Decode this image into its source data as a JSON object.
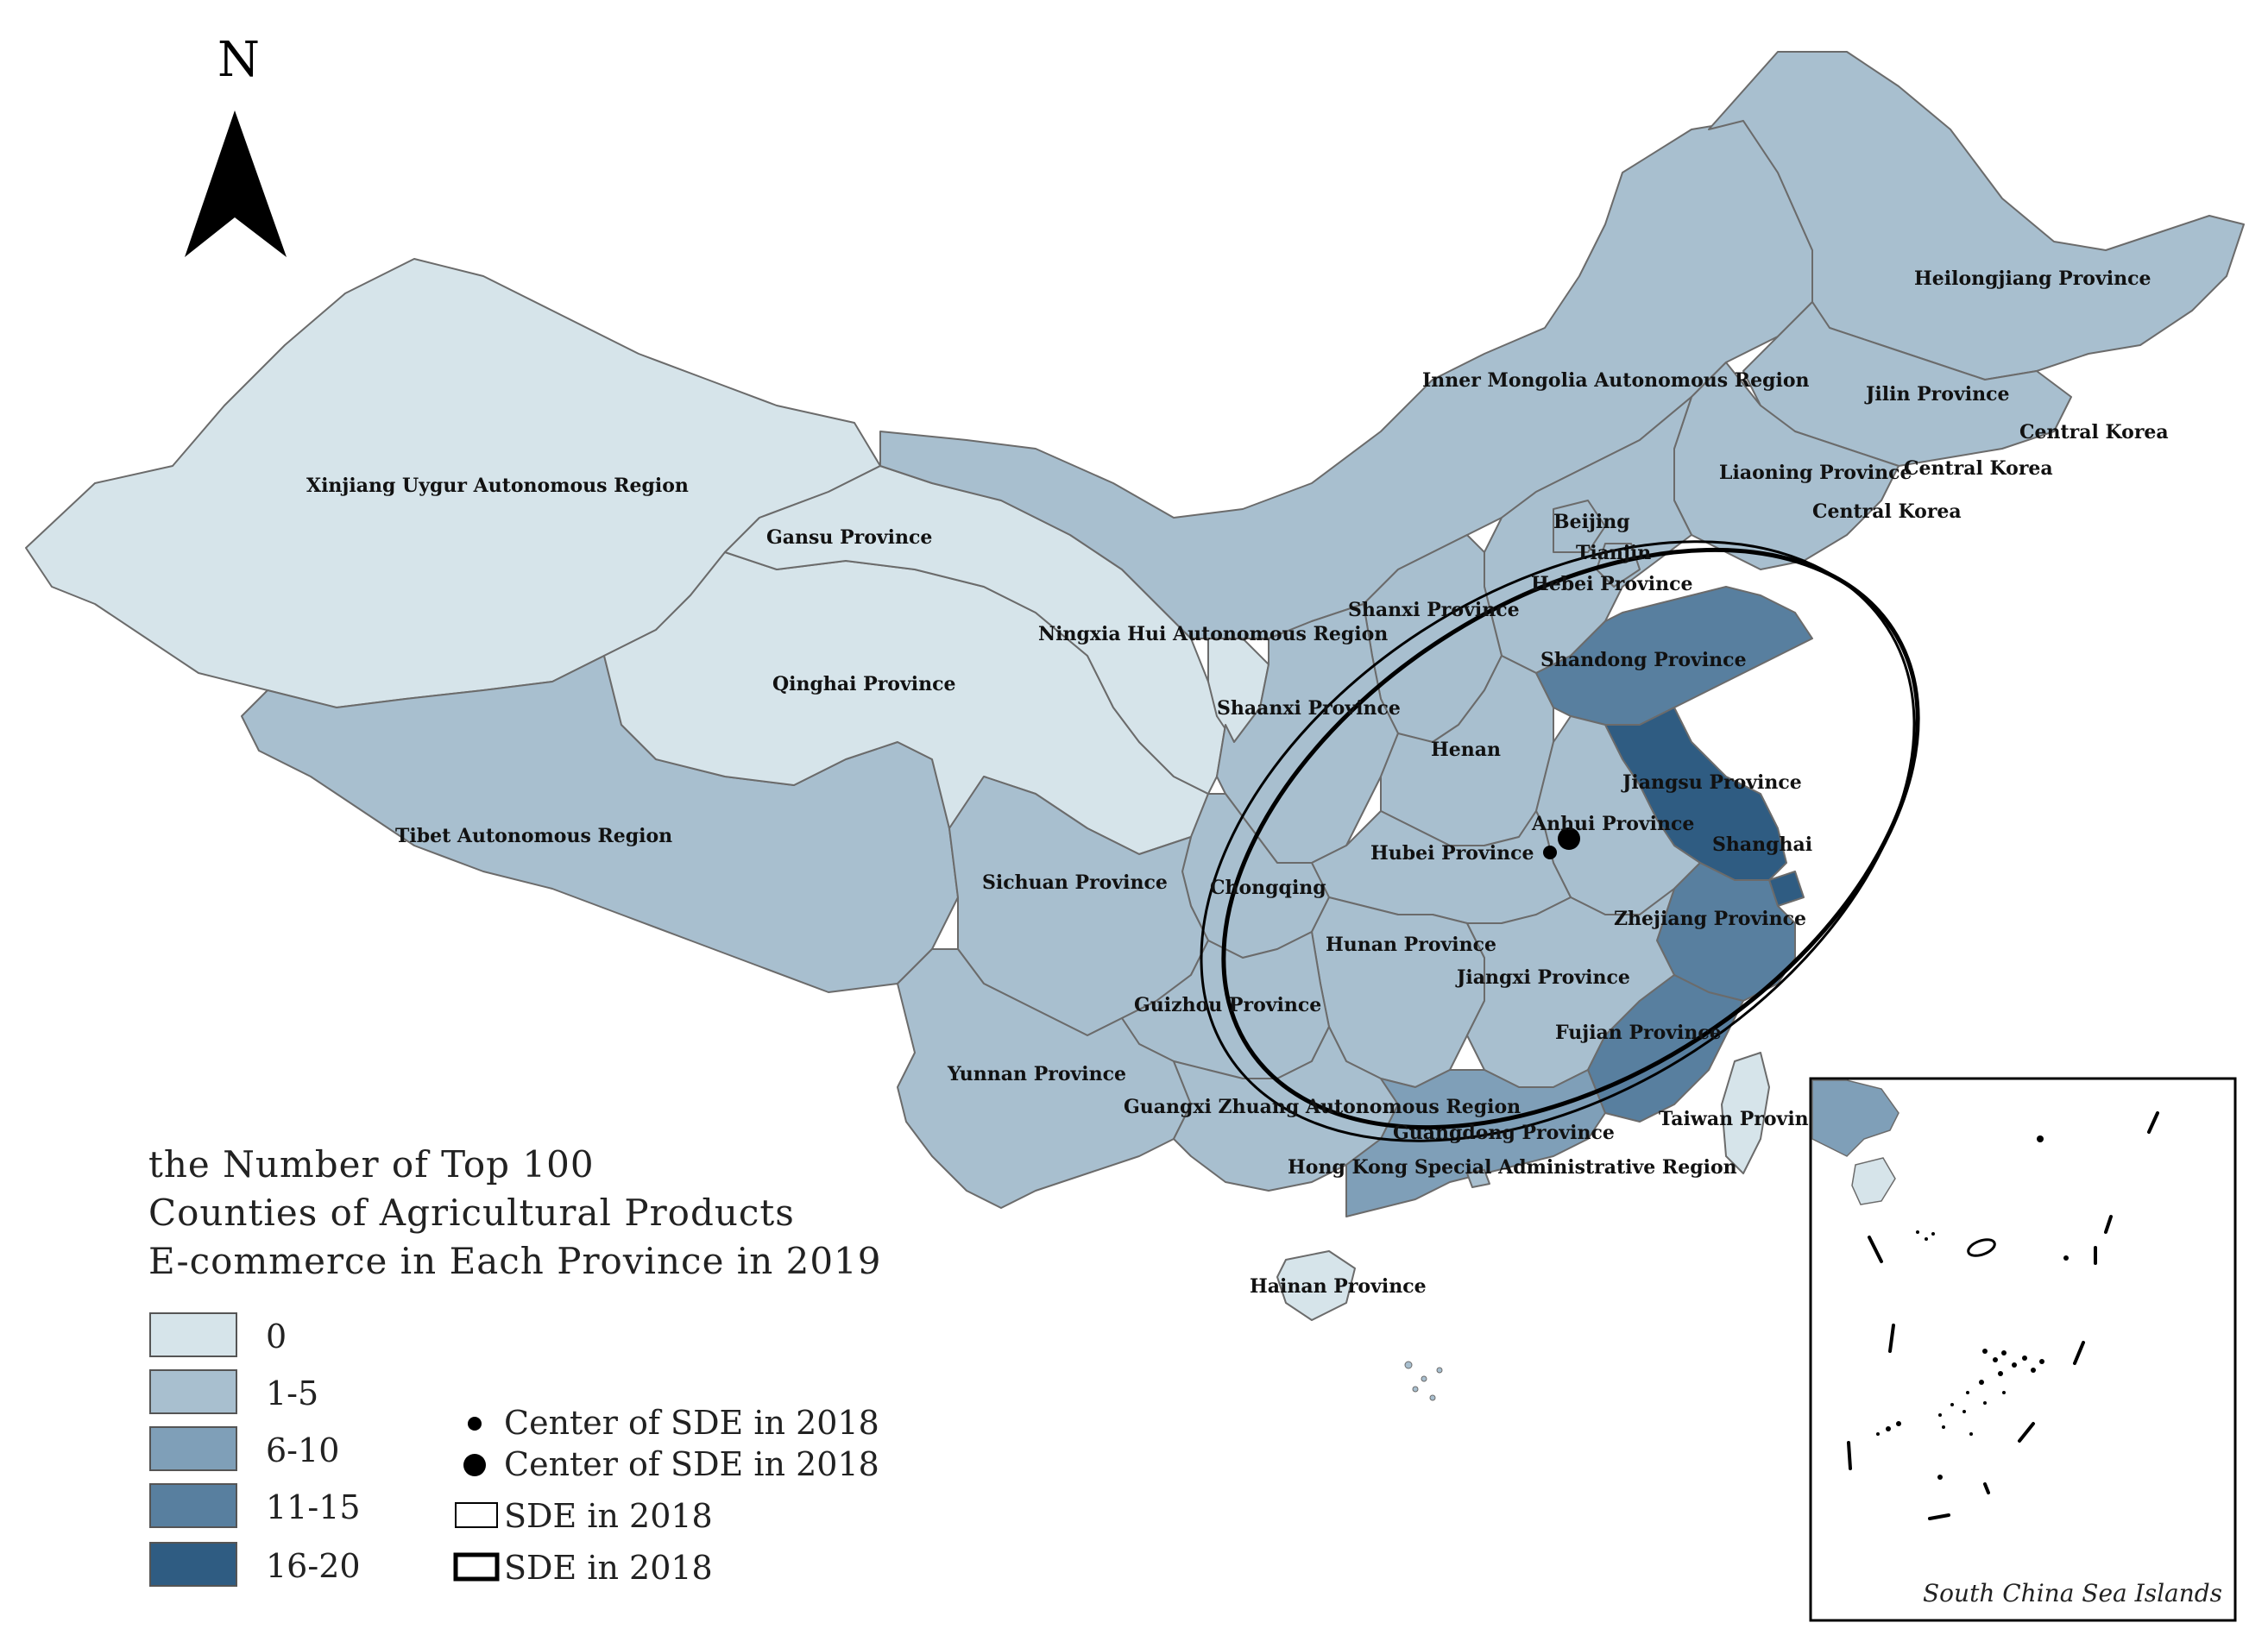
{
  "north_label": "N",
  "colors": {
    "c0": "#d6e4ea",
    "c1": "#a8bfcf",
    "c2": "#7f9fb8",
    "c3": "#587f9f",
    "c4": "#2f5c82",
    "border": "#6b6b6b"
  },
  "provinces": [
    {
      "name": "Xinjiang Uygur Autonomous Region",
      "class": "c0"
    },
    {
      "name": "Gansu Province",
      "class": "c0"
    },
    {
      "name": "Qinghai Province",
      "class": "c0"
    },
    {
      "name": "Ningxia Hui Autonomous Region",
      "class": "c0"
    },
    {
      "name": "Tibet Autonomous Region",
      "class": "c1"
    },
    {
      "name": "Inner Mongolia Autonomous Region",
      "class": "c1"
    },
    {
      "name": "Heilongjiang Province",
      "class": "c1"
    },
    {
      "name": "Jilin Province",
      "class": "c1"
    },
    {
      "name": "Liaoning Province",
      "class": "c1"
    },
    {
      "name": "Beijing",
      "class": "c1"
    },
    {
      "name": "Tianjin",
      "class": "c1"
    },
    {
      "name": "Hebei Province",
      "class": "c1"
    },
    {
      "name": "Shanxi Province",
      "class": "c1"
    },
    {
      "name": "Shaanxi Province",
      "class": "c1"
    },
    {
      "name": "Henan",
      "class": "c1"
    },
    {
      "name": "Shandong Province",
      "class": "c3"
    },
    {
      "name": "Jiangsu Province",
      "class": "c4"
    },
    {
      "name": "Anhui Province",
      "class": "c1"
    },
    {
      "name": "Shanghai",
      "class": "c4"
    },
    {
      "name": "Hubei Province",
      "class": "c1"
    },
    {
      "name": "Sichuan Province",
      "class": "c1"
    },
    {
      "name": "Chongqing",
      "class": "c1"
    },
    {
      "name": "Hunan Province",
      "class": "c1"
    },
    {
      "name": "Jiangxi Province",
      "class": "c1"
    },
    {
      "name": "Zhejiang Province",
      "class": "c3"
    },
    {
      "name": "Fujian Province",
      "class": "c3"
    },
    {
      "name": "Guizhou Province",
      "class": "c1"
    },
    {
      "name": "Yunnan Province",
      "class": "c1"
    },
    {
      "name": "Guangxi Zhuang Autonomous Region",
      "class": "c1"
    },
    {
      "name": "Guangdong Province",
      "class": "c2"
    },
    {
      "name": "Hong Kong Special Administrative Region",
      "class": "c1"
    },
    {
      "name": "Taiwan Province",
      "class": "c0"
    },
    {
      "name": "Hainan Province",
      "class": "c0"
    }
  ],
  "extra_labels": [
    "Central Korea",
    "Central Korea",
    "Central Korea"
  ],
  "legend": {
    "title_lines": [
      "the Number of Top 100",
      "Counties of Agricultural Products",
      "E-commerce in Each Province in 2019"
    ],
    "classes": [
      {
        "label": "0",
        "color": "#d6e4ea"
      },
      {
        "label": "1-5",
        "color": "#a8bfcf"
      },
      {
        "label": "6-10",
        "color": "#7f9fb8"
      },
      {
        "label": "11-15",
        "color": "#587f9f"
      },
      {
        "label": "16-20",
        "color": "#2f5c82"
      }
    ],
    "symbols": [
      {
        "label": "Center of SDE in 2018",
        "kind": "small-dot"
      },
      {
        "label": "Center of SDE in 2018",
        "kind": "large-dot"
      },
      {
        "label": "SDE in 2018",
        "kind": "thin-rect"
      },
      {
        "label": "SDE in 2018",
        "kind": "thick-rect"
      }
    ]
  },
  "inset": {
    "label": "South China Sea Islands"
  }
}
